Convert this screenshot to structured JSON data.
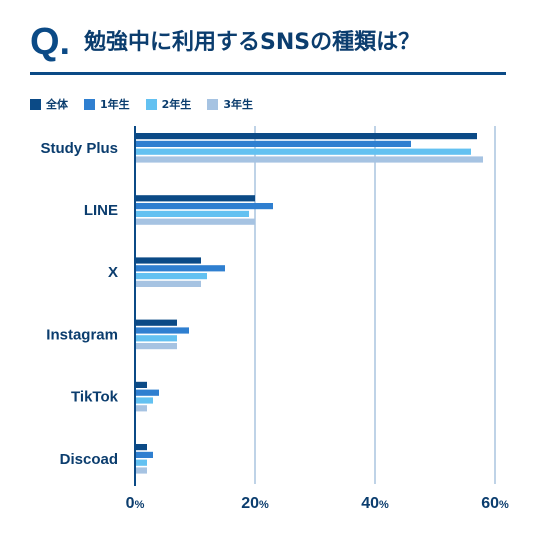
{
  "title": {
    "q_mark": "Q.",
    "text": "勉強中に利用するSNSの種類は？"
  },
  "chart_data": {
    "type": "bar",
    "orientation": "horizontal",
    "categories": [
      "Study Plus",
      "LINE",
      "X",
      "Instagram",
      "TikTok",
      "Discoad"
    ],
    "series": [
      {
        "name": "全体",
        "color": "#0b4a86",
        "values": [
          57,
          20,
          11,
          7,
          2,
          2
        ]
      },
      {
        "name": "1年生",
        "color": "#2f7fd0",
        "values": [
          46,
          23,
          15,
          9,
          4,
          3
        ]
      },
      {
        "name": "2年生",
        "color": "#63c1f1",
        "values": [
          56,
          19,
          12,
          7,
          3,
          2
        ]
      },
      {
        "name": "3年生",
        "color": "#a6c3e2",
        "values": [
          58,
          20,
          11,
          7,
          2,
          2
        ]
      }
    ],
    "xlim": [
      0,
      60
    ],
    "xticks": [
      {
        "value": 0,
        "num": "0",
        "unit": "%"
      },
      {
        "value": 20,
        "num": "20",
        "unit": "%"
      },
      {
        "value": 40,
        "num": "40",
        "unit": "%"
      },
      {
        "value": 60,
        "num": "60",
        "unit": "%"
      }
    ],
    "grid": true,
    "legend_position": "top-left",
    "axis_color": "#0b4a86",
    "grid_color": "#7fa7cf"
  }
}
